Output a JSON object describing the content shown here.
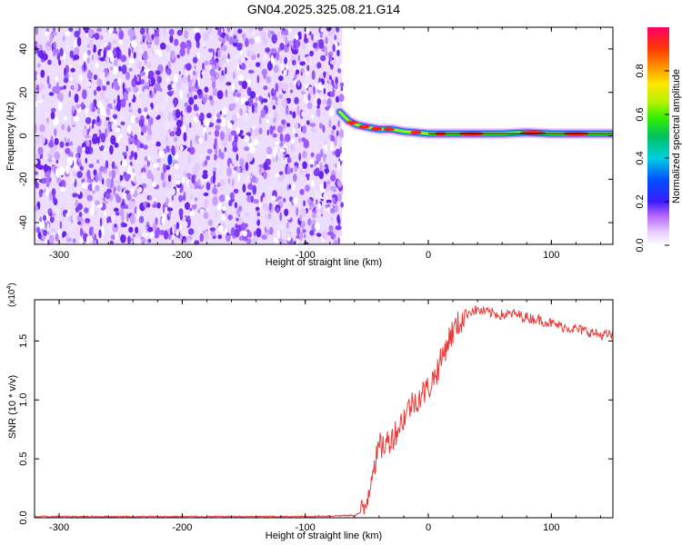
{
  "figure_title": "GN04.2025.325.08.21.G14",
  "chart_data": [
    {
      "type": "heatmap",
      "title": "GN04.2025.325.08.21.G14",
      "xlabel": "Height of straight line (km)",
      "ylabel": "Frequency (Hz)",
      "xlim": [
        -320,
        150
      ],
      "ylim": [
        -50,
        50
      ],
      "x_ticks": [
        -300,
        -200,
        -100,
        0,
        100
      ],
      "y_ticks": [
        -40,
        -20,
        0,
        20,
        40
      ],
      "x_tick_labels": [
        "-300",
        "-200",
        "-100",
        "0",
        "100"
      ],
      "y_tick_labels": [
        "-40",
        "-20",
        "0",
        "20",
        "40"
      ],
      "noise_region_x": [
        -320,
        -70
      ],
      "signal_curve": {
        "x": [
          -72,
          -65,
          -58,
          -50,
          -40,
          -30,
          -20,
          -10,
          0,
          10,
          20,
          40,
          60,
          80,
          100,
          120,
          150
        ],
        "frequency_hz": [
          11,
          7,
          5,
          4,
          3,
          3,
          2,
          1.5,
          1,
          1,
          1,
          1,
          1,
          1.5,
          1,
          1,
          1
        ]
      },
      "colorbar": {
        "label": "Normalized spectral amplitude",
        "range": [
          0,
          1
        ],
        "ticks": [
          0.0,
          0.2,
          0.4,
          0.6,
          0.8
        ],
        "tick_labels": [
          "0.0",
          "0.2",
          "0.4",
          "0.6",
          "0.8"
        ]
      }
    },
    {
      "type": "line",
      "xlabel": "Height of straight line (km)",
      "ylabel": "SNR (10 * v/v)",
      "y_multiplier": "(x10",
      "y_multiplier_exp": "4",
      "y_multiplier_close": ")",
      "xlim": [
        -320,
        150
      ],
      "ylim": [
        0,
        1.85
      ],
      "x_ticks": [
        -300,
        -200,
        -100,
        0,
        100
      ],
      "y_ticks": [
        0.0,
        0.5,
        1.0,
        1.5
      ],
      "x_tick_labels": [
        "-300",
        "-200",
        "-100",
        "0",
        "100"
      ],
      "y_tick_labels": [
        "0.0",
        "0.5",
        "1.0",
        "1.5"
      ],
      "color": "#e83a3a",
      "series": [
        {
          "name": "SNR",
          "x": [
            -320,
            -300,
            -250,
            -200,
            -150,
            -100,
            -60,
            -52,
            -48,
            -45,
            -42,
            -40,
            -35,
            -30,
            -25,
            -20,
            -15,
            -10,
            -5,
            0,
            5,
            10,
            15,
            20,
            25,
            30,
            35,
            40,
            50,
            60,
            70,
            80,
            90,
            100,
            110,
            120,
            130,
            140,
            150
          ],
          "y": [
            0.01,
            0.01,
            0.01,
            0.01,
            0.01,
            0.01,
            0.02,
            0.06,
            0.25,
            0.45,
            0.5,
            0.6,
            0.62,
            0.68,
            0.75,
            0.85,
            0.95,
            1.0,
            1.05,
            1.1,
            1.2,
            1.32,
            1.48,
            1.58,
            1.65,
            1.72,
            1.76,
            1.76,
            1.74,
            1.72,
            1.73,
            1.7,
            1.68,
            1.65,
            1.62,
            1.6,
            1.58,
            1.55,
            1.55
          ]
        }
      ]
    }
  ]
}
